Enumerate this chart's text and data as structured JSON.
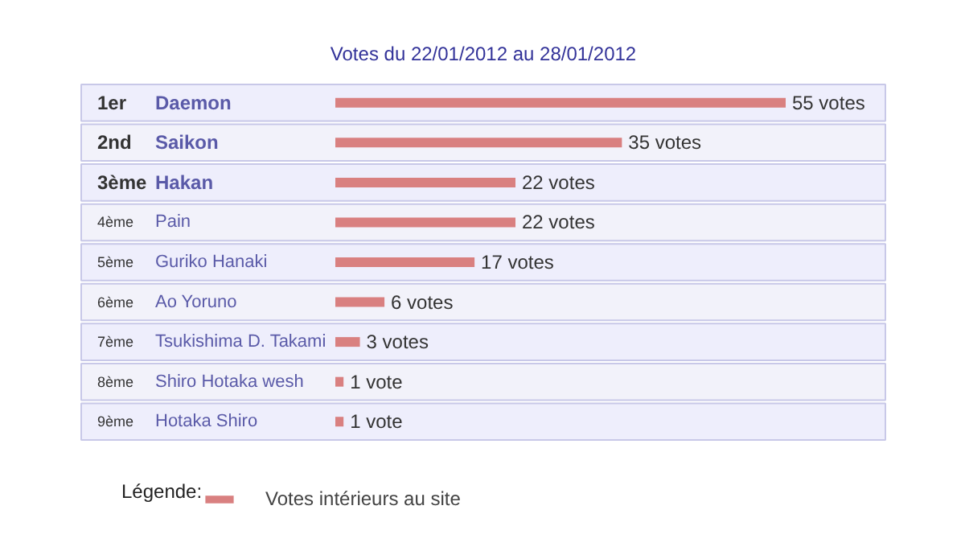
{
  "chart_data": {
    "type": "bar",
    "orientation": "horizontal",
    "title": "Votes du 22/01/2012 au 28/01/2012",
    "categories": [
      "Daemon",
      "Saikon",
      "Hakan",
      "Pain",
      "Guriko Hanaki",
      "Ao Yoruno",
      "Tsukishima D. Takami",
      "Shiro Hotaka wesh",
      "Hotaka Shiro"
    ],
    "annotations": [
      "1er",
      "2nd",
      "3ème",
      "4ème",
      "5ème",
      "6ème",
      "7ème",
      "8ème",
      "9ème"
    ],
    "series": [
      {
        "name": "Votes intérieurs au site",
        "color": "#d98080",
        "values": [
          55,
          35,
          22,
          22,
          17,
          6,
          3,
          1,
          1
        ],
        "value_labels": [
          "55 votes",
          "35 votes",
          "22 votes",
          "22 votes",
          "17 votes",
          "6 votes",
          "3 votes",
          "1 vote",
          "1 vote"
        ]
      }
    ],
    "legend_title": "Légende:",
    "legend": "bottom"
  }
}
